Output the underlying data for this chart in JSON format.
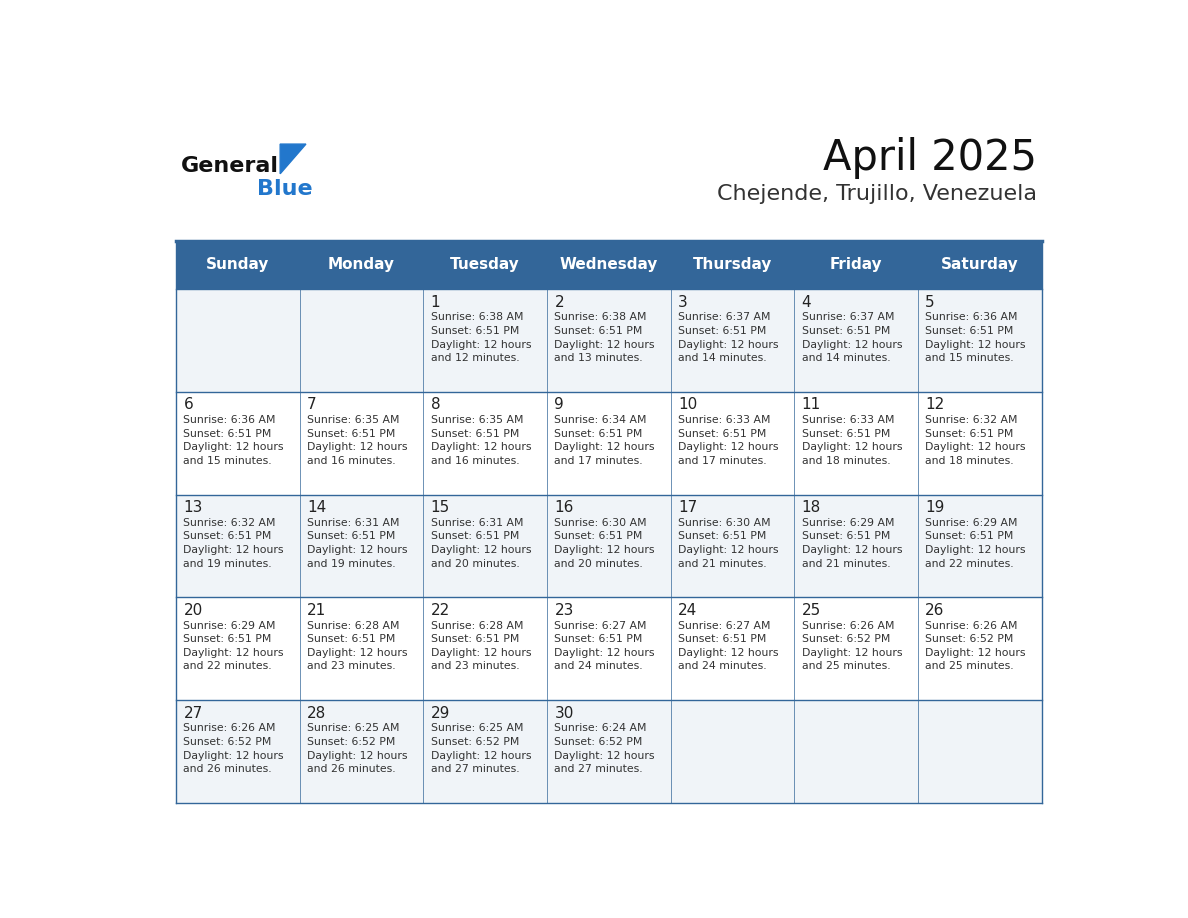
{
  "title": "April 2025",
  "subtitle": "Chejende, Trujillo, Venezuela",
  "days_of_week": [
    "Sunday",
    "Monday",
    "Tuesday",
    "Wednesday",
    "Thursday",
    "Friday",
    "Saturday"
  ],
  "header_bg_color": "#336699",
  "header_text_color": "#ffffff",
  "row_bg_even": "#f0f4f8",
  "row_bg_odd": "#ffffff",
  "cell_border_color": "#336699",
  "day_num_color": "#222222",
  "text_color": "#333333",
  "title_color": "#111111",
  "subtitle_color": "#333333",
  "logo_general_color": "#111111",
  "logo_blue_color": "#2277cc",
  "calendar_data": [
    [
      {
        "day": null,
        "text": ""
      },
      {
        "day": null,
        "text": ""
      },
      {
        "day": 1,
        "text": "Sunrise: 6:38 AM\nSunset: 6:51 PM\nDaylight: 12 hours\nand 12 minutes."
      },
      {
        "day": 2,
        "text": "Sunrise: 6:38 AM\nSunset: 6:51 PM\nDaylight: 12 hours\nand 13 minutes."
      },
      {
        "day": 3,
        "text": "Sunrise: 6:37 AM\nSunset: 6:51 PM\nDaylight: 12 hours\nand 14 minutes."
      },
      {
        "day": 4,
        "text": "Sunrise: 6:37 AM\nSunset: 6:51 PM\nDaylight: 12 hours\nand 14 minutes."
      },
      {
        "day": 5,
        "text": "Sunrise: 6:36 AM\nSunset: 6:51 PM\nDaylight: 12 hours\nand 15 minutes."
      }
    ],
    [
      {
        "day": 6,
        "text": "Sunrise: 6:36 AM\nSunset: 6:51 PM\nDaylight: 12 hours\nand 15 minutes."
      },
      {
        "day": 7,
        "text": "Sunrise: 6:35 AM\nSunset: 6:51 PM\nDaylight: 12 hours\nand 16 minutes."
      },
      {
        "day": 8,
        "text": "Sunrise: 6:35 AM\nSunset: 6:51 PM\nDaylight: 12 hours\nand 16 minutes."
      },
      {
        "day": 9,
        "text": "Sunrise: 6:34 AM\nSunset: 6:51 PM\nDaylight: 12 hours\nand 17 minutes."
      },
      {
        "day": 10,
        "text": "Sunrise: 6:33 AM\nSunset: 6:51 PM\nDaylight: 12 hours\nand 17 minutes."
      },
      {
        "day": 11,
        "text": "Sunrise: 6:33 AM\nSunset: 6:51 PM\nDaylight: 12 hours\nand 18 minutes."
      },
      {
        "day": 12,
        "text": "Sunrise: 6:32 AM\nSunset: 6:51 PM\nDaylight: 12 hours\nand 18 minutes."
      }
    ],
    [
      {
        "day": 13,
        "text": "Sunrise: 6:32 AM\nSunset: 6:51 PM\nDaylight: 12 hours\nand 19 minutes."
      },
      {
        "day": 14,
        "text": "Sunrise: 6:31 AM\nSunset: 6:51 PM\nDaylight: 12 hours\nand 19 minutes."
      },
      {
        "day": 15,
        "text": "Sunrise: 6:31 AM\nSunset: 6:51 PM\nDaylight: 12 hours\nand 20 minutes."
      },
      {
        "day": 16,
        "text": "Sunrise: 6:30 AM\nSunset: 6:51 PM\nDaylight: 12 hours\nand 20 minutes."
      },
      {
        "day": 17,
        "text": "Sunrise: 6:30 AM\nSunset: 6:51 PM\nDaylight: 12 hours\nand 21 minutes."
      },
      {
        "day": 18,
        "text": "Sunrise: 6:29 AM\nSunset: 6:51 PM\nDaylight: 12 hours\nand 21 minutes."
      },
      {
        "day": 19,
        "text": "Sunrise: 6:29 AM\nSunset: 6:51 PM\nDaylight: 12 hours\nand 22 minutes."
      }
    ],
    [
      {
        "day": 20,
        "text": "Sunrise: 6:29 AM\nSunset: 6:51 PM\nDaylight: 12 hours\nand 22 minutes."
      },
      {
        "day": 21,
        "text": "Sunrise: 6:28 AM\nSunset: 6:51 PM\nDaylight: 12 hours\nand 23 minutes."
      },
      {
        "day": 22,
        "text": "Sunrise: 6:28 AM\nSunset: 6:51 PM\nDaylight: 12 hours\nand 23 minutes."
      },
      {
        "day": 23,
        "text": "Sunrise: 6:27 AM\nSunset: 6:51 PM\nDaylight: 12 hours\nand 24 minutes."
      },
      {
        "day": 24,
        "text": "Sunrise: 6:27 AM\nSunset: 6:51 PM\nDaylight: 12 hours\nand 24 minutes."
      },
      {
        "day": 25,
        "text": "Sunrise: 6:26 AM\nSunset: 6:52 PM\nDaylight: 12 hours\nand 25 minutes."
      },
      {
        "day": 26,
        "text": "Sunrise: 6:26 AM\nSunset: 6:52 PM\nDaylight: 12 hours\nand 25 minutes."
      }
    ],
    [
      {
        "day": 27,
        "text": "Sunrise: 6:26 AM\nSunset: 6:52 PM\nDaylight: 12 hours\nand 26 minutes."
      },
      {
        "day": 28,
        "text": "Sunrise: 6:25 AM\nSunset: 6:52 PM\nDaylight: 12 hours\nand 26 minutes."
      },
      {
        "day": 29,
        "text": "Sunrise: 6:25 AM\nSunset: 6:52 PM\nDaylight: 12 hours\nand 27 minutes."
      },
      {
        "day": 30,
        "text": "Sunrise: 6:24 AM\nSunset: 6:52 PM\nDaylight: 12 hours\nand 27 minutes."
      },
      {
        "day": null,
        "text": ""
      },
      {
        "day": null,
        "text": ""
      },
      {
        "day": null,
        "text": ""
      }
    ]
  ]
}
